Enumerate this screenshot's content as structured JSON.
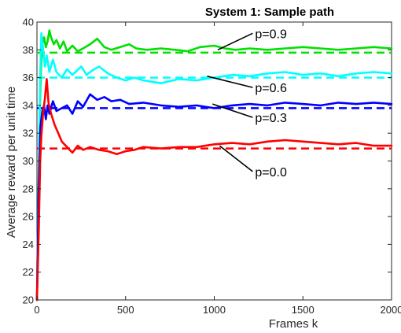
{
  "chart_data": {
    "type": "line",
    "title": "System 1: Sample path",
    "xlabel": "Frames k",
    "ylabel": "Average reward per unit time",
    "xlim": [
      0,
      2000
    ],
    "ylim": [
      20,
      40
    ],
    "xticks": [
      0,
      500,
      1000,
      1500,
      2000
    ],
    "yticks": [
      20,
      22,
      24,
      26,
      28,
      30,
      32,
      34,
      36,
      38,
      40
    ],
    "grid": false,
    "series": [
      {
        "color": "#00e000",
        "reference": 37.8,
        "points": [
          [
            0,
            20
          ],
          [
            8,
            27
          ],
          [
            15,
            33
          ],
          [
            22,
            36.5
          ],
          [
            30,
            38.4
          ],
          [
            40,
            38.9
          ],
          [
            50,
            38.2
          ],
          [
            60,
            38.6
          ],
          [
            70,
            39.4
          ],
          [
            80,
            38.9
          ],
          [
            95,
            38.4
          ],
          [
            110,
            38.7
          ],
          [
            130,
            38.1
          ],
          [
            150,
            38.6
          ],
          [
            170,
            37.9
          ],
          [
            200,
            38.3
          ],
          [
            230,
            37.9
          ],
          [
            260,
            38.1
          ],
          [
            300,
            38.4
          ],
          [
            340,
            38.8
          ],
          [
            380,
            38.2
          ],
          [
            420,
            38.0
          ],
          [
            470,
            38.2
          ],
          [
            520,
            38.4
          ],
          [
            560,
            38.1
          ],
          [
            620,
            38.0
          ],
          [
            700,
            38.1
          ],
          [
            780,
            38.0
          ],
          [
            850,
            37.9
          ],
          [
            920,
            38.2
          ],
          [
            1000,
            38.3
          ],
          [
            1060,
            38.1
          ],
          [
            1120,
            38.0
          ],
          [
            1200,
            38.1
          ],
          [
            1300,
            38.0
          ],
          [
            1400,
            38.1
          ],
          [
            1500,
            38.2
          ],
          [
            1600,
            38.1
          ],
          [
            1700,
            38.0
          ],
          [
            1800,
            38.1
          ],
          [
            1900,
            38.2
          ],
          [
            2000,
            38.1
          ]
        ]
      },
      {
        "color": "#00ffff",
        "reference": 36.0,
        "points": [
          [
            0,
            20
          ],
          [
            8,
            27
          ],
          [
            18,
            36
          ],
          [
            25,
            39.2
          ],
          [
            35,
            38.0
          ],
          [
            45,
            36.8
          ],
          [
            55,
            37.6
          ],
          [
            70,
            36.4
          ],
          [
            90,
            37.3
          ],
          [
            110,
            36.4
          ],
          [
            140,
            36.0
          ],
          [
            170,
            36.6
          ],
          [
            200,
            36.2
          ],
          [
            250,
            36.8
          ],
          [
            280,
            36.2
          ],
          [
            310,
            36.5
          ],
          [
            350,
            36.8
          ],
          [
            400,
            36.3
          ],
          [
            450,
            36.0
          ],
          [
            500,
            35.8
          ],
          [
            550,
            36.0
          ],
          [
            600,
            35.8
          ],
          [
            700,
            35.6
          ],
          [
            800,
            35.9
          ],
          [
            900,
            35.8
          ],
          [
            1000,
            36.0
          ],
          [
            1100,
            36.2
          ],
          [
            1200,
            36.1
          ],
          [
            1300,
            36.3
          ],
          [
            1400,
            36.4
          ],
          [
            1500,
            36.2
          ],
          [
            1600,
            36.3
          ],
          [
            1700,
            36.1
          ],
          [
            1800,
            36.3
          ],
          [
            1900,
            36.4
          ],
          [
            2000,
            36.3
          ]
        ]
      },
      {
        "color": "#0000ff",
        "reference": 33.8,
        "points": [
          [
            0,
            20
          ],
          [
            10,
            28
          ],
          [
            20,
            32.5
          ],
          [
            30,
            33.6
          ],
          [
            40,
            34.0
          ],
          [
            50,
            33.0
          ],
          [
            60,
            34.0
          ],
          [
            70,
            33.4
          ],
          [
            90,
            34.3
          ],
          [
            110,
            33.6
          ],
          [
            140,
            33.8
          ],
          [
            170,
            34.0
          ],
          [
            200,
            33.4
          ],
          [
            230,
            34.3
          ],
          [
            260,
            33.9
          ],
          [
            300,
            34.8
          ],
          [
            340,
            34.4
          ],
          [
            380,
            34.6
          ],
          [
            420,
            34.3
          ],
          [
            470,
            34.4
          ],
          [
            520,
            34.1
          ],
          [
            600,
            34.2
          ],
          [
            700,
            34.0
          ],
          [
            800,
            33.9
          ],
          [
            900,
            34.0
          ],
          [
            1000,
            33.8
          ],
          [
            1100,
            34.0
          ],
          [
            1200,
            34.1
          ],
          [
            1300,
            34.0
          ],
          [
            1400,
            34.2
          ],
          [
            1500,
            34.1
          ],
          [
            1600,
            34.0
          ],
          [
            1700,
            34.2
          ],
          [
            1800,
            34.1
          ],
          [
            1900,
            34.2
          ],
          [
            2000,
            34.1
          ]
        ]
      },
      {
        "color": "#ff0000",
        "reference": 30.9,
        "points": [
          [
            0,
            20
          ],
          [
            10,
            25
          ],
          [
            18,
            30
          ],
          [
            25,
            31.8
          ],
          [
            35,
            33.5
          ],
          [
            45,
            34.5
          ],
          [
            55,
            35.9
          ],
          [
            65,
            34.2
          ],
          [
            80,
            33.4
          ],
          [
            100,
            32.6
          ],
          [
            120,
            32.0
          ],
          [
            140,
            31.4
          ],
          [
            170,
            31.0
          ],
          [
            200,
            30.6
          ],
          [
            230,
            31.1
          ],
          [
            260,
            30.8
          ],
          [
            300,
            31.0
          ],
          [
            350,
            30.8
          ],
          [
            400,
            30.7
          ],
          [
            450,
            30.5
          ],
          [
            500,
            30.7
          ],
          [
            550,
            30.8
          ],
          [
            600,
            31.0
          ],
          [
            700,
            30.9
          ],
          [
            800,
            31.0
          ],
          [
            900,
            31.0
          ],
          [
            1000,
            31.2
          ],
          [
            1100,
            31.3
          ],
          [
            1200,
            31.2
          ],
          [
            1300,
            31.4
          ],
          [
            1400,
            31.5
          ],
          [
            1500,
            31.4
          ],
          [
            1600,
            31.3
          ],
          [
            1700,
            31.2
          ],
          [
            1800,
            31.3
          ],
          [
            1900,
            31.1
          ],
          [
            2000,
            31.1
          ]
        ]
      }
    ],
    "annotations": [
      {
        "text": "p=0.9",
        "x": 1230,
        "y": 38.85,
        "target": [
          1020,
          38.0
        ]
      },
      {
        "text": "p=0.6",
        "x": 1230,
        "y": 34.95,
        "target": [
          960,
          36.1
        ]
      },
      {
        "text": "p=0.3",
        "x": 1230,
        "y": 32.8,
        "target": [
          990,
          34.1
        ]
      },
      {
        "text": "p=0.0",
        "x": 1230,
        "y": 28.9,
        "target": [
          1030,
          31.1
        ]
      }
    ]
  }
}
